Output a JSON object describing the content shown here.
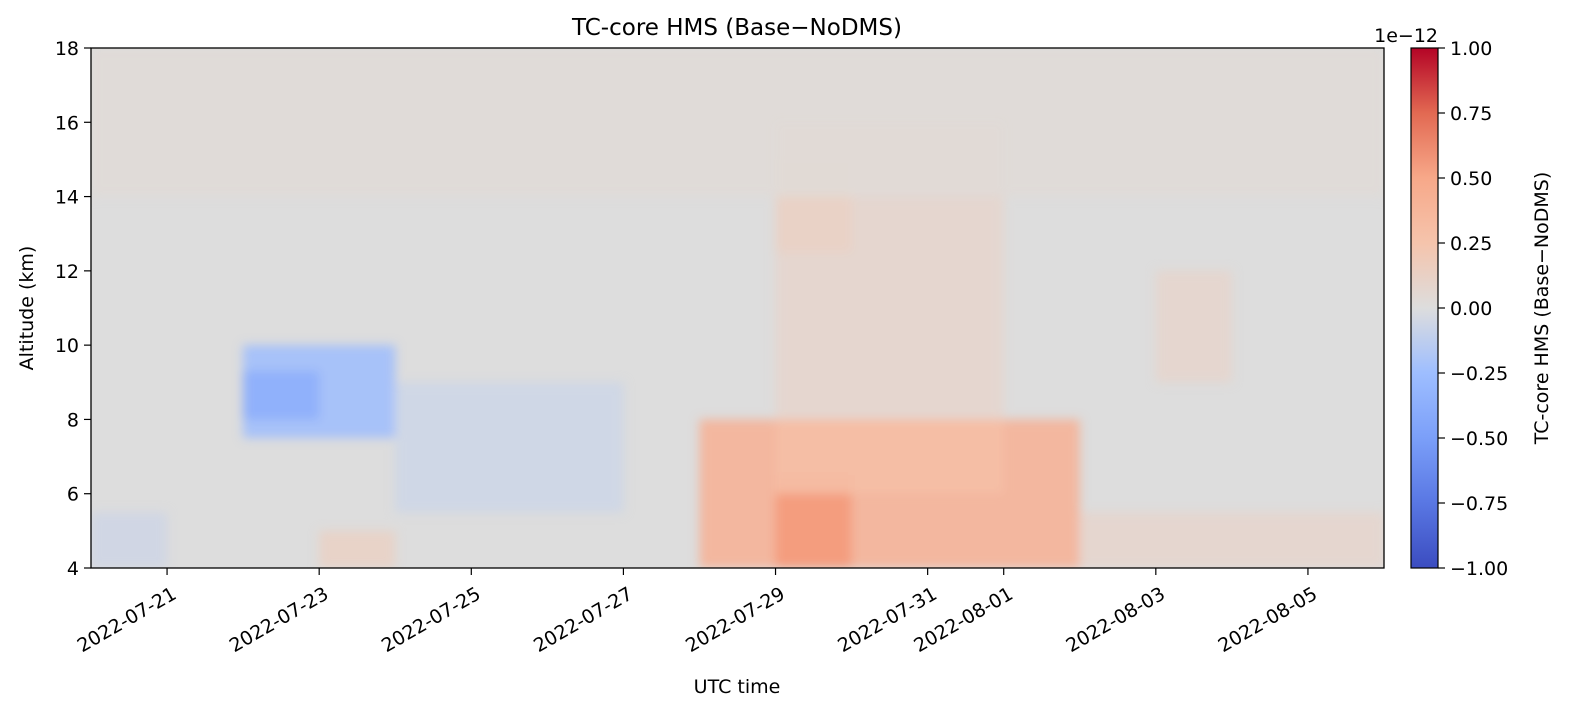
{
  "chart_data": {
    "type": "heatmap",
    "title": "TC-core HMS (Base−NoDMS)",
    "xlabel": "UTC time",
    "ylabel": "Altitude (km)",
    "x_range": [
      "2022-07-20",
      "2022-08-06"
    ],
    "x_ticks": [
      "2022-07-21",
      "2022-07-23",
      "2022-07-25",
      "2022-07-27",
      "2022-07-29",
      "2022-07-31",
      "2022-08-01",
      "2022-08-03",
      "2022-08-05"
    ],
    "y_range": [
      4,
      18
    ],
    "y_ticks": [
      "4",
      "6",
      "8",
      "10",
      "12",
      "14",
      "16",
      "18"
    ],
    "colormap": "coolwarm",
    "colorbar": {
      "label": "TC-core HMS (Base−NoDMS)",
      "range": [
        -1.0,
        1.0
      ],
      "ticks": [
        "1.00",
        "0.75",
        "0.50",
        "0.25",
        "0.00",
        "−0.25",
        "−0.50",
        "−0.75",
        "−1.00"
      ],
      "offset_text": "1e−12"
    },
    "grid": false,
    "features": [
      {
        "x_start": "2022-07-28",
        "x_end": "2022-08-02",
        "alt_min": 4,
        "alt_max": 8,
        "value": 0.35,
        "note_peak_near": "2022-07-29"
      },
      {
        "x_start": "2022-07-29",
        "x_end": "2022-07-30",
        "alt_min": 4,
        "alt_max": 6.5,
        "value": 0.5
      },
      {
        "x_start": "2022-07-29",
        "x_end": "2022-08-01",
        "alt_min": 6,
        "alt_max": 8,
        "value": 0.28
      },
      {
        "x_start": "2022-07-22",
        "x_end": "2022-07-24",
        "alt_min": 7.5,
        "alt_max": 10,
        "value": -0.3
      },
      {
        "x_start": "2022-07-22",
        "x_end": "2022-07-23",
        "alt_min": 8,
        "alt_max": 9.3,
        "value": -0.4
      },
      {
        "x_start": "2022-07-24",
        "x_end": "2022-07-27",
        "alt_min": 5.5,
        "alt_max": 9,
        "value": -0.08
      },
      {
        "x_start": "2022-07-29",
        "x_end": "2022-08-01",
        "alt_min": 8,
        "alt_max": 16,
        "value": 0.08
      },
      {
        "x_start": "2022-07-29",
        "x_end": "2022-07-30",
        "alt_min": 12.5,
        "alt_max": 15,
        "value": 0.12
      },
      {
        "x_start": "2022-08-03",
        "x_end": "2022-08-04",
        "alt_min": 9,
        "alt_max": 12,
        "value": 0.08
      },
      {
        "x_start": "2022-07-23",
        "x_end": "2022-07-24",
        "alt_min": 4,
        "alt_max": 5,
        "value": 0.12
      },
      {
        "x_start": "2022-07-20",
        "x_end": "2022-07-21",
        "alt_min": 4,
        "alt_max": 5.5,
        "value": 0.1
      },
      {
        "x_start": "2022-07-20",
        "x_end": "2022-07-21",
        "alt_min": 4,
        "alt_max": 5.5,
        "value": -0.08
      },
      {
        "x_start": "2022-08-02",
        "x_end": "2022-08-06",
        "alt_min": 4,
        "alt_max": 5.5,
        "value": 0.08
      },
      {
        "x_start": "2022-07-20",
        "x_end": "2022-08-06",
        "alt_min": 14,
        "alt_max": 18,
        "value": 0.03
      }
    ]
  }
}
